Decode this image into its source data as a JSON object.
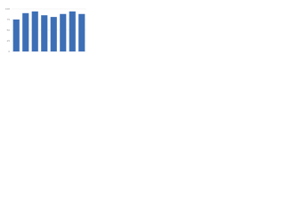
{
  "chart_data": {
    "type": "bar",
    "categories": [
      null,
      null,
      null,
      null,
      null,
      null,
      null,
      null
    ],
    "values": [
      75,
      90,
      94,
      85,
      81,
      88,
      94,
      88
    ],
    "color": "#3d6fb6",
    "ylim": [
      0,
      100
    ],
    "yticks": [
      0,
      25,
      50,
      75,
      100
    ],
    "grid": true
  }
}
